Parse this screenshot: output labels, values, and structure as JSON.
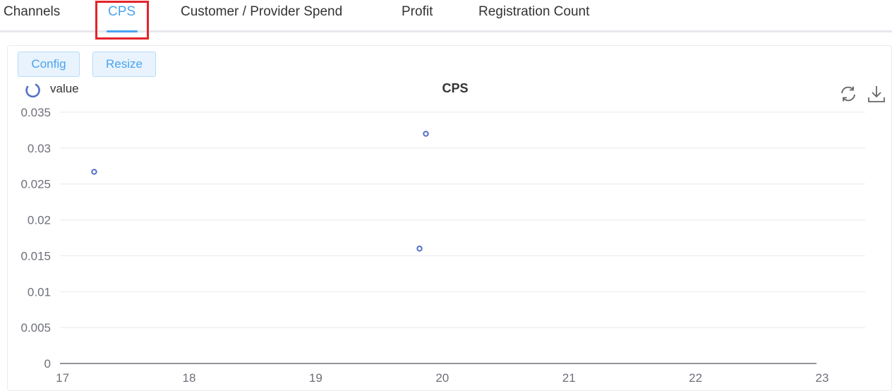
{
  "tabs": [
    {
      "label": "Channels",
      "active": false
    },
    {
      "label": "CPS",
      "active": true
    },
    {
      "label": "Customer / Provider Spend",
      "active": false
    },
    {
      "label": "Profit",
      "active": false
    },
    {
      "label": "Registration Count",
      "active": false
    }
  ],
  "toolbar": {
    "config_label": "Config",
    "resize_label": "Resize"
  },
  "chart_tools": {
    "refresh_icon": "refresh-icon",
    "download_icon": "download-icon"
  },
  "colors": {
    "accent": "#4aa3f0",
    "series": "#5470c6",
    "highlight": "#e3242b"
  },
  "chart_data": {
    "type": "scatter",
    "title": "CPS",
    "legend": {
      "entries": [
        "value"
      ],
      "placement": "top-left"
    },
    "xlim": [
      16.98,
      23.34
    ],
    "ylim": [
      0,
      0.035
    ],
    "x_ticks": [
      "17",
      "18",
      "19",
      "20",
      "21",
      "22",
      "23"
    ],
    "y_ticks": [
      "0",
      "0.005",
      "0.01",
      "0.015",
      "0.02",
      "0.025",
      "0.03",
      "0.035"
    ],
    "grid": true,
    "series": [
      {
        "name": "value",
        "points": [
          {
            "x": 17.25,
            "y": 0.0267
          },
          {
            "x": 19.82,
            "y": 0.016
          },
          {
            "x": 19.87,
            "y": 0.032
          }
        ]
      }
    ]
  }
}
